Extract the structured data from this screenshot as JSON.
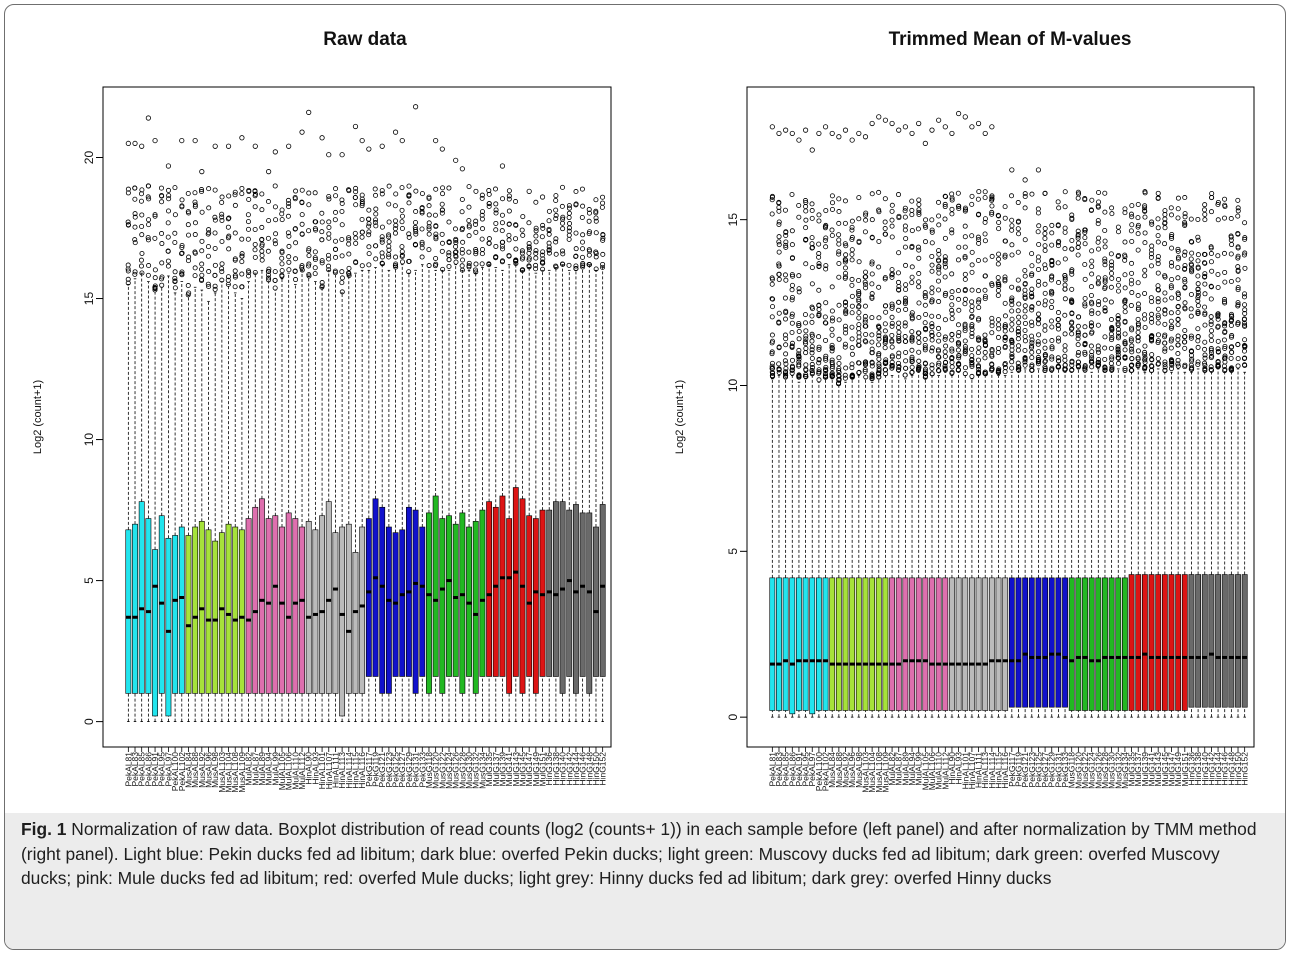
{
  "caption": {
    "fig_label": "Fig. 1",
    "text": " Normalization of raw data. Boxplot distribution of read counts (log2 (counts+ 1)) in each sample before (left panel) and after normalization by TMM method (right panel). Light blue: Pekin ducks fed ad libitum; dark blue: overfed Pekin ducks; light green: Muscovy ducks fed ad libitum; dark green: overfed Muscovy ducks; pink: Mule ducks fed ad libitum; red: overfed Mule ducks; light grey: Hinny ducks fed ad libitum; dark grey: overfed Hinny ducks"
  },
  "group_colors": [
    "#22e5ee",
    "#a6e23a",
    "#de6fae",
    "#bbbbbb",
    "#1111cc",
    "#22b822",
    "#dd1414",
    "#6a6a6a"
  ],
  "sample_labels": [
    "PekAL81",
    "PekAL83",
    "PekAL85",
    "PekAL86",
    "PekAL91",
    "PekAL95",
    "PekAL97",
    "PekAL100",
    "PekAL102",
    "MusAL84",
    "MusAL88",
    "MusAL92",
    "MusAL96",
    "MusAL98",
    "MusAL103",
    "MusAL104",
    "MusAL108",
    "MusAL109",
    "MulAL82",
    "MulAL87",
    "MulAL89",
    "MulAL94",
    "MulAL99",
    "MulAL105",
    "MulAL106",
    "MulAL110",
    "MulAL112",
    "HinAL90",
    "HinAL93",
    "HinAL101",
    "HinAL107",
    "HinAL111",
    "HinAL113",
    "HinAL114",
    "HinAL115",
    "HinAL116",
    "PekG117",
    "PekG119",
    "PekG121",
    "PekG123",
    "PekG125",
    "PekG127",
    "PekG129",
    "PekG131",
    "PekG133",
    "MusG118",
    "MusG120",
    "MusG122",
    "MusG124",
    "MusG126",
    "MusG128",
    "MusG130",
    "MusG132",
    "MusG134",
    "MulG135",
    "MulG137",
    "MulG139",
    "MulG141",
    "MulG143",
    "MulG145",
    "MulG147",
    "MulG149",
    "MulG151",
    "HinG136",
    "HinG138",
    "HinG140",
    "HinG142",
    "HinG144",
    "HinG146",
    "HinG148",
    "HinG150",
    "HinG152"
  ],
  "chart_data": [
    {
      "type": "box",
      "title": "Raw data",
      "xlabel": "",
      "ylabel": "Log2 (count+1)",
      "ylim": [
        -0.9,
        22.5
      ],
      "yticks": [
        0,
        5,
        10,
        15,
        20
      ],
      "group_sizes": [
        9,
        9,
        9,
        9,
        9,
        9,
        9,
        9
      ],
      "medians": [
        3.7,
        3.7,
        4.0,
        3.9,
        4.8,
        4.2,
        3.2,
        4.3,
        4.4,
        3.4,
        3.7,
        4.0,
        3.6,
        3.6,
        4.0,
        3.8,
        3.6,
        3.7,
        3.6,
        3.9,
        4.3,
        4.2,
        4.8,
        4.2,
        3.7,
        4.2,
        4.3,
        3.7,
        3.8,
        3.9,
        4.3,
        4.7,
        3.8,
        3.2,
        3.9,
        4.1,
        4.6,
        5.1,
        4.8,
        4.3,
        4.2,
        4.5,
        4.6,
        4.9,
        4.8,
        4.5,
        4.3,
        4.7,
        5.0,
        4.4,
        4.5,
        4.2,
        3.8,
        4.3,
        4.5,
        4.8,
        5.1,
        5.1,
        5.3,
        4.8,
        4.2,
        4.6,
        4.5,
        4.6,
        4.5,
        4.7,
        5.0,
        4.6,
        4.8,
        4.6,
        3.9,
        4.8
      ],
      "q1": [
        1.0,
        1.0,
        1.0,
        1.0,
        0.2,
        1.0,
        0.2,
        1.0,
        1.0,
        1.0,
        1.0,
        1.0,
        1.0,
        1.0,
        1.0,
        1.0,
        1.0,
        1.0,
        1.0,
        1.0,
        1.0,
        1.0,
        1.0,
        1.0,
        1.0,
        1.0,
        1.0,
        1.0,
        1.0,
        1.0,
        1.0,
        1.0,
        0.2,
        1.0,
        1.0,
        1.0,
        1.6,
        1.6,
        1.0,
        1.0,
        1.6,
        1.6,
        1.6,
        1.0,
        1.6,
        1.0,
        1.6,
        1.0,
        1.6,
        1.6,
        1.0,
        1.6,
        1.0,
        1.6,
        1.6,
        1.6,
        1.6,
        1.0,
        1.6,
        1.0,
        1.6,
        1.0,
        1.6,
        1.6,
        1.6,
        1.0,
        1.6,
        1.0,
        1.6,
        1.0,
        1.6,
        1.6
      ],
      "q3": [
        6.8,
        7.0,
        7.8,
        7.2,
        6.1,
        7.3,
        6.5,
        6.6,
        6.9,
        6.6,
        6.9,
        7.1,
        6.8,
        6.4,
        6.7,
        7.0,
        6.9,
        6.8,
        7.2,
        7.6,
        7.9,
        7.2,
        7.3,
        6.9,
        7.4,
        7.2,
        6.9,
        7.1,
        6.8,
        7.3,
        7.8,
        6.7,
        6.9,
        7.0,
        6.0,
        6.9,
        7.2,
        7.9,
        7.6,
        6.9,
        6.7,
        6.8,
        7.6,
        7.5,
        6.9,
        7.4,
        8.0,
        7.2,
        7.3,
        7.0,
        7.4,
        6.9,
        7.1,
        7.5,
        7.8,
        7.6,
        8.0,
        7.2,
        8.3,
        7.9,
        7.3,
        7.2,
        7.5,
        7.5,
        7.8,
        7.8,
        7.5,
        7.7,
        7.4,
        7.4,
        6.9,
        7.7
      ],
      "whisker_low": 0.0,
      "whisker_high": [
        15.5,
        15.7,
        15.9,
        15.6,
        15.3,
        15.4,
        15.8,
        15.2,
        15.6,
        15.1,
        15.4,
        15.3,
        14.9,
        15.2,
        15.6,
        15.5,
        15.2,
        15.0,
        15.6,
        15.9,
        16.0,
        15.6,
        15.3,
        15.7,
        15.9,
        15.5,
        16.0,
        15.8,
        15.6,
        15.4,
        16.0,
        15.9,
        15.2,
        15.8,
        15.9,
        16.0,
        16.0,
        16.1,
        16.2,
        16.0,
        16.1,
        16.2,
        15.9,
        16.0,
        16.2,
        16.1,
        16.0,
        16.0,
        16.0,
        16.2,
        16.0,
        16.0,
        15.9,
        16.1,
        16.2,
        16.1,
        16.0,
        16.2,
        16.2,
        16.0,
        16.1,
        15.9,
        16.0,
        16.0,
        16.1,
        16.2,
        16.0,
        16.0,
        16.1,
        16.2,
        16.0,
        16.1
      ],
      "outlier_range": [
        15.0,
        19.0
      ],
      "extreme_outliers": [
        [
          0,
          20.5
        ],
        [
          1,
          20.5
        ],
        [
          2,
          20.4
        ],
        [
          3,
          21.4
        ],
        [
          4,
          20.6
        ],
        [
          6,
          19.7
        ],
        [
          8,
          20.6
        ],
        [
          10,
          20.6
        ],
        [
          11,
          19.5
        ],
        [
          13,
          20.4
        ],
        [
          15,
          20.4
        ],
        [
          17,
          20.7
        ],
        [
          19,
          20.4
        ],
        [
          21,
          19.5
        ],
        [
          22,
          20.2
        ],
        [
          24,
          20.4
        ],
        [
          26,
          20.9
        ],
        [
          27,
          21.6
        ],
        [
          29,
          20.7
        ],
        [
          30,
          20.1
        ],
        [
          32,
          20.1
        ],
        [
          34,
          21.1
        ],
        [
          35,
          20.6
        ],
        [
          36,
          20.3
        ],
        [
          38,
          20.4
        ],
        [
          40,
          20.9
        ],
        [
          41,
          20.6
        ],
        [
          43,
          21.8
        ],
        [
          46,
          20.6
        ],
        [
          47,
          20.3
        ],
        [
          49,
          19.9
        ],
        [
          50,
          19.6
        ],
        [
          56,
          19.7
        ],
        [
          60,
          18.8
        ],
        [
          62,
          18.6
        ]
      ]
    },
    {
      "type": "box",
      "title": "Trimmed Mean of M-values",
      "xlabel": "",
      "ylabel": "Log2 (count+1)",
      "ylim": [
        -0.9,
        19.0
      ],
      "yticks": [
        0,
        5,
        10,
        15
      ],
      "group_sizes": [
        9,
        9,
        9,
        9,
        9,
        9,
        9,
        9
      ],
      "medians": [
        1.6,
        1.6,
        1.7,
        1.6,
        1.7,
        1.7,
        1.7,
        1.7,
        1.7,
        1.6,
        1.6,
        1.6,
        1.6,
        1.6,
        1.6,
        1.6,
        1.6,
        1.6,
        1.6,
        1.6,
        1.7,
        1.7,
        1.7,
        1.7,
        1.6,
        1.6,
        1.6,
        1.6,
        1.6,
        1.6,
        1.6,
        1.6,
        1.6,
        1.7,
        1.7,
        1.7,
        1.7,
        1.7,
        1.9,
        1.8,
        1.8,
        1.8,
        1.9,
        1.9,
        1.8,
        1.7,
        1.8,
        1.8,
        1.7,
        1.7,
        1.8,
        1.8,
        1.8,
        1.8,
        1.8,
        1.8,
        1.9,
        1.8,
        1.8,
        1.8,
        1.8,
        1.8,
        1.8,
        1.8,
        1.8,
        1.8,
        1.9,
        1.8,
        1.8,
        1.8,
        1.8,
        1.8
      ],
      "q1": [
        0.2,
        0.2,
        0.2,
        0.1,
        0.2,
        0.2,
        0.1,
        0.2,
        0.2,
        0.2,
        0.2,
        0.2,
        0.2,
        0.2,
        0.2,
        0.2,
        0.2,
        0.2,
        0.2,
        0.2,
        0.2,
        0.2,
        0.2,
        0.2,
        0.2,
        0.2,
        0.2,
        0.2,
        0.2,
        0.2,
        0.2,
        0.2,
        0.2,
        0.2,
        0.2,
        0.2,
        0.3,
        0.3,
        0.3,
        0.3,
        0.3,
        0.3,
        0.3,
        0.3,
        0.3,
        0.2,
        0.2,
        0.2,
        0.2,
        0.2,
        0.2,
        0.2,
        0.2,
        0.2,
        0.2,
        0.2,
        0.2,
        0.2,
        0.2,
        0.2,
        0.2,
        0.2,
        0.2,
        0.3,
        0.3,
        0.3,
        0.3,
        0.3,
        0.3,
        0.3,
        0.3,
        0.3
      ],
      "q3": [
        4.2,
        4.2,
        4.2,
        4.2,
        4.2,
        4.2,
        4.2,
        4.2,
        4.2,
        4.2,
        4.2,
        4.2,
        4.2,
        4.2,
        4.2,
        4.2,
        4.2,
        4.2,
        4.2,
        4.2,
        4.2,
        4.2,
        4.2,
        4.2,
        4.2,
        4.2,
        4.2,
        4.2,
        4.2,
        4.2,
        4.2,
        4.2,
        4.2,
        4.2,
        4.2,
        4.2,
        4.2,
        4.2,
        4.2,
        4.2,
        4.2,
        4.2,
        4.2,
        4.2,
        4.2,
        4.2,
        4.2,
        4.2,
        4.2,
        4.2,
        4.2,
        4.2,
        4.2,
        4.2,
        4.3,
        4.3,
        4.3,
        4.3,
        4.3,
        4.3,
        4.3,
        4.3,
        4.3,
        4.3,
        4.3,
        4.3,
        4.3,
        4.3,
        4.3,
        4.3,
        4.3,
        4.3
      ],
      "whisker_low": 0.0,
      "whisker_high": [
        10.2,
        10.3,
        10.2,
        10.3,
        10.1,
        10.2,
        10.3,
        10.1,
        10.2,
        10.2,
        10.0,
        10.1,
        10.2,
        10.3,
        10.2,
        10.1,
        10.2,
        10.3,
        10.3,
        10.4,
        10.2,
        10.3,
        10.4,
        10.2,
        10.3,
        10.3,
        10.4,
        10.3,
        10.4,
        10.3,
        10.2,
        10.3,
        10.3,
        10.4,
        10.3,
        10.3,
        10.4,
        10.4,
        10.5,
        10.4,
        10.5,
        10.4,
        10.4,
        10.5,
        10.4,
        10.4,
        10.5,
        10.4,
        10.4,
        10.5,
        10.4,
        10.4,
        10.5,
        10.4,
        10.4,
        10.5,
        10.4,
        10.4,
        10.5,
        10.4,
        10.4,
        10.5,
        10.4,
        10.4,
        10.5,
        10.4,
        10.4,
        10.5,
        10.4,
        10.4,
        10.5,
        10.4
      ],
      "outlier_range": [
        10.2,
        15.8
      ],
      "extreme_outliers": [
        [
          0,
          17.8
        ],
        [
          1,
          17.6
        ],
        [
          2,
          17.7
        ],
        [
          3,
          17.6
        ],
        [
          4,
          17.4
        ],
        [
          5,
          17.7
        ],
        [
          6,
          17.1
        ],
        [
          7,
          17.6
        ],
        [
          8,
          17.8
        ],
        [
          9,
          17.6
        ],
        [
          10,
          17.5
        ],
        [
          11,
          17.7
        ],
        [
          12,
          17.4
        ],
        [
          13,
          17.6
        ],
        [
          14,
          17.5
        ],
        [
          15,
          17.9
        ],
        [
          16,
          18.1
        ],
        [
          17,
          18.0
        ],
        [
          18,
          17.9
        ],
        [
          19,
          17.7
        ],
        [
          20,
          17.8
        ],
        [
          21,
          17.6
        ],
        [
          22,
          17.9
        ],
        [
          23,
          17.3
        ],
        [
          24,
          17.7
        ],
        [
          25,
          18.0
        ],
        [
          26,
          17.8
        ],
        [
          27,
          17.6
        ],
        [
          28,
          18.2
        ],
        [
          29,
          18.1
        ],
        [
          30,
          17.8
        ],
        [
          31,
          17.9
        ],
        [
          32,
          17.6
        ],
        [
          33,
          17.8
        ],
        [
          36,
          16.5
        ],
        [
          38,
          16.2
        ],
        [
          40,
          16.5
        ]
      ]
    }
  ]
}
